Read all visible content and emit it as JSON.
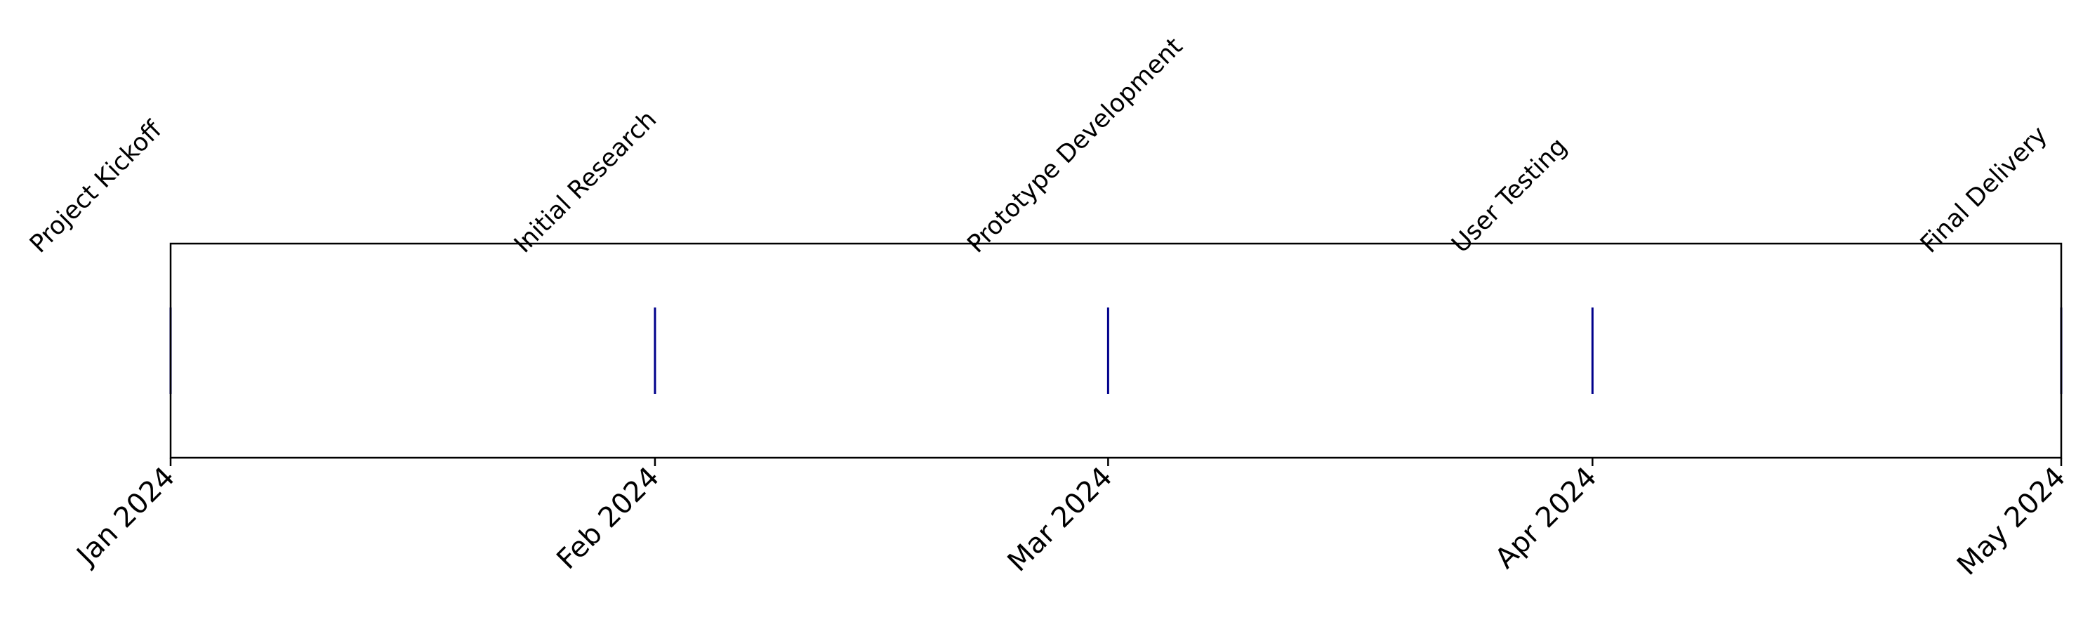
{
  "chart_data": {
    "type": "timeline",
    "title": "",
    "xlabel": "",
    "ylabel": "",
    "x_range": [
      "2024-01-01",
      "2024-05-01"
    ],
    "grid": false,
    "legend": "none",
    "marker_color": "#00008b",
    "events": [
      {
        "date": "2024-01-01",
        "label": "Project Kickoff"
      },
      {
        "date": "2024-02-01",
        "label": "Initial Research"
      },
      {
        "date": "2024-03-01",
        "label": "Prototype Development"
      },
      {
        "date": "2024-04-01",
        "label": "User Testing"
      },
      {
        "date": "2024-05-01",
        "label": "Final Delivery"
      }
    ],
    "ticks": [
      {
        "date": "2024-01-01",
        "label": "Jan 2024"
      },
      {
        "date": "2024-02-01",
        "label": "Feb 2024"
      },
      {
        "date": "2024-03-01",
        "label": "Mar 2024"
      },
      {
        "date": "2024-04-01",
        "label": "Apr 2024"
      },
      {
        "date": "2024-05-01",
        "label": "May 2024"
      }
    ]
  }
}
